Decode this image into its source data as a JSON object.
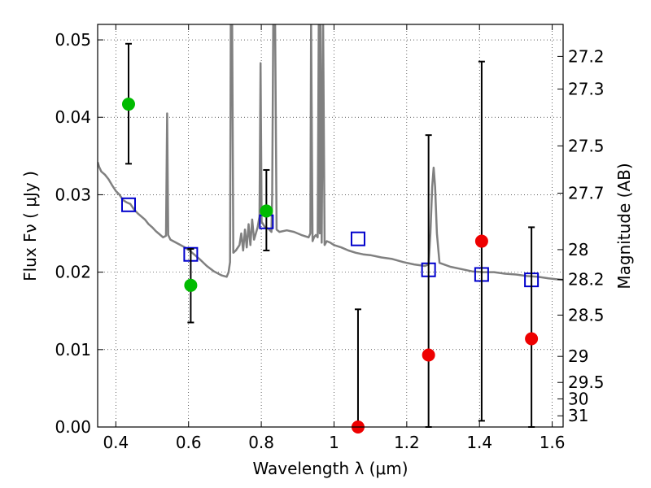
{
  "chart_data": {
    "type": "scatter",
    "xlabel": "Wavelength  λ (μm)",
    "ylabel": "Flux  Fν ( μJy )",
    "y2label": "Magnitude (AB)",
    "xlim": [
      0.35,
      1.63
    ],
    "ylim": [
      0.0,
      0.052
    ],
    "grid": true,
    "x_ticks": [
      {
        "value": 0.4,
        "label": "0.4"
      },
      {
        "value": 0.6,
        "label": "0.6"
      },
      {
        "value": 0.8,
        "label": "0.8"
      },
      {
        "value": 1.0,
        "label": "1"
      },
      {
        "value": 1.2,
        "label": "1.2"
      },
      {
        "value": 1.4,
        "label": "1.4"
      },
      {
        "value": 1.6,
        "label": "1.6"
      }
    ],
    "y_ticks": [
      {
        "value": 0.0,
        "label": "0.00"
      },
      {
        "value": 0.01,
        "label": "0.01"
      },
      {
        "value": 0.02,
        "label": "0.02"
      },
      {
        "value": 0.03,
        "label": "0.03"
      },
      {
        "value": 0.04,
        "label": "0.04"
      },
      {
        "value": 0.05,
        "label": "0.05"
      }
    ],
    "mag_ticks": [
      {
        "mag": 27.2,
        "label": "27.2"
      },
      {
        "mag": 27.3,
        "label": "27.3"
      },
      {
        "mag": 27.5,
        "label": "27.5"
      },
      {
        "mag": 27.7,
        "label": "27.7"
      },
      {
        "mag": 28,
        "label": "28"
      },
      {
        "mag": 28.2,
        "label": "28.2"
      },
      {
        "mag": 28.5,
        "label": "28.5"
      },
      {
        "mag": 29,
        "label": "29"
      },
      {
        "mag": 29.5,
        "label": "29.5"
      },
      {
        "mag": 30,
        "label": "30"
      },
      {
        "mag": 31,
        "label": "31"
      }
    ],
    "series": [
      {
        "kind": "model-spectrum",
        "color": "#808080",
        "points": [
          [
            0.35,
            0.0342
          ],
          [
            0.355,
            0.0335
          ],
          [
            0.36,
            0.033
          ],
          [
            0.365,
            0.0328
          ],
          [
            0.37,
            0.0326
          ],
          [
            0.38,
            0.032
          ],
          [
            0.39,
            0.0312
          ],
          [
            0.4,
            0.0305
          ],
          [
            0.41,
            0.03
          ],
          [
            0.42,
            0.0293
          ],
          [
            0.43,
            0.029
          ],
          [
            0.44,
            0.0288
          ],
          [
            0.45,
            0.0281
          ],
          [
            0.46,
            0.0276
          ],
          [
            0.47,
            0.0272
          ],
          [
            0.48,
            0.0268
          ],
          [
            0.49,
            0.0262
          ],
          [
            0.5,
            0.0258
          ],
          [
            0.51,
            0.0253
          ],
          [
            0.52,
            0.0249
          ],
          [
            0.53,
            0.0245
          ],
          [
            0.538,
            0.0247
          ],
          [
            0.541,
            0.0405
          ],
          [
            0.544,
            0.0248
          ],
          [
            0.55,
            0.0242
          ],
          [
            0.57,
            0.0237
          ],
          [
            0.59,
            0.0232
          ],
          [
            0.61,
            0.0225
          ],
          [
            0.63,
            0.0217
          ],
          [
            0.65,
            0.0208
          ],
          [
            0.67,
            0.0201
          ],
          [
            0.69,
            0.0196
          ],
          [
            0.705,
            0.0194
          ],
          [
            0.71,
            0.02
          ],
          [
            0.714,
            0.0213
          ],
          [
            0.716,
            0.052
          ],
          [
            0.72,
            0.052
          ],
          [
            0.723,
            0.0225
          ],
          [
            0.73,
            0.0228
          ],
          [
            0.74,
            0.0235
          ],
          [
            0.745,
            0.025
          ],
          [
            0.75,
            0.0228
          ],
          [
            0.755,
            0.0255
          ],
          [
            0.76,
            0.0232
          ],
          [
            0.765,
            0.0262
          ],
          [
            0.77,
            0.0235
          ],
          [
            0.775,
            0.0268
          ],
          [
            0.78,
            0.0242
          ],
          [
            0.79,
            0.0258
          ],
          [
            0.795,
            0.0272
          ],
          [
            0.798,
            0.047
          ],
          [
            0.801,
            0.0265
          ],
          [
            0.81,
            0.0258
          ],
          [
            0.82,
            0.0256
          ],
          [
            0.828,
            0.0252
          ],
          [
            0.83,
            0.03
          ],
          [
            0.833,
            0.052
          ],
          [
            0.838,
            0.052
          ],
          [
            0.842,
            0.0255
          ],
          [
            0.85,
            0.0252
          ],
          [
            0.87,
            0.0254
          ],
          [
            0.89,
            0.0252
          ],
          [
            0.91,
            0.0248
          ],
          [
            0.93,
            0.0245
          ],
          [
            0.935,
            0.025
          ],
          [
            0.937,
            0.052
          ],
          [
            0.941,
            0.024
          ],
          [
            0.945,
            0.0245
          ],
          [
            0.95,
            0.0248
          ],
          [
            0.955,
            0.0245
          ],
          [
            0.958,
            0.052
          ],
          [
            0.961,
            0.025
          ],
          [
            0.963,
            0.052
          ],
          [
            0.966,
            0.0238
          ],
          [
            0.97,
            0.052
          ],
          [
            0.974,
            0.0235
          ],
          [
            0.98,
            0.024
          ],
          [
            0.99,
            0.0238
          ],
          [
            1.0,
            0.0235
          ],
          [
            1.02,
            0.0232
          ],
          [
            1.04,
            0.0228
          ],
          [
            1.06,
            0.0225
          ],
          [
            1.08,
            0.0223
          ],
          [
            1.1,
            0.0222
          ],
          [
            1.13,
            0.0219
          ],
          [
            1.16,
            0.0217
          ],
          [
            1.19,
            0.0213
          ],
          [
            1.22,
            0.021
          ],
          [
            1.25,
            0.0208
          ],
          [
            1.26,
            0.021
          ],
          [
            1.265,
            0.025
          ],
          [
            1.27,
            0.031
          ],
          [
            1.274,
            0.0335
          ],
          [
            1.278,
            0.031
          ],
          [
            1.283,
            0.025
          ],
          [
            1.29,
            0.0212
          ],
          [
            1.32,
            0.0207
          ],
          [
            1.35,
            0.0204
          ],
          [
            1.38,
            0.0201
          ],
          [
            1.41,
            0.02
          ],
          [
            1.44,
            0.02
          ],
          [
            1.47,
            0.0198
          ],
          [
            1.5,
            0.0197
          ],
          [
            1.53,
            0.0195
          ],
          [
            1.56,
            0.0194
          ],
          [
            1.59,
            0.0192
          ],
          [
            1.61,
            0.0191
          ],
          [
            1.63,
            0.019
          ]
        ]
      },
      {
        "kind": "model-photometry",
        "color": "#0000cc",
        "points": [
          [
            0.435,
            0.0287
          ],
          [
            0.606,
            0.0223
          ],
          [
            0.814,
            0.0265
          ],
          [
            1.066,
            0.0243
          ],
          [
            1.26,
            0.0203
          ],
          [
            1.406,
            0.0197
          ],
          [
            1.543,
            0.019
          ]
        ]
      },
      {
        "kind": "detections",
        "color": "#00bb00",
        "points": [
          {
            "x": 0.435,
            "y": 0.0417,
            "err_low": 0.034,
            "err_high": 0.0495
          },
          {
            "x": 0.606,
            "y": 0.0183,
            "err_low": 0.0135,
            "err_high": 0.023
          },
          {
            "x": 0.814,
            "y": 0.0279,
            "err_low": 0.0228,
            "err_high": 0.0332
          }
        ]
      },
      {
        "kind": "non-detections",
        "color": "#ee0000",
        "points": [
          {
            "x": 1.066,
            "y": 0.0,
            "err_low": 0.0,
            "err_high": 0.0152
          },
          {
            "x": 1.26,
            "y": 0.0093,
            "err_low": 0.0,
            "err_high": 0.0377
          },
          {
            "x": 1.406,
            "y": 0.024,
            "err_low": 0.0008,
            "err_high": 0.0472
          },
          {
            "x": 1.543,
            "y": 0.0114,
            "err_low": 0.0,
            "err_high": 0.0258
          }
        ]
      }
    ]
  }
}
